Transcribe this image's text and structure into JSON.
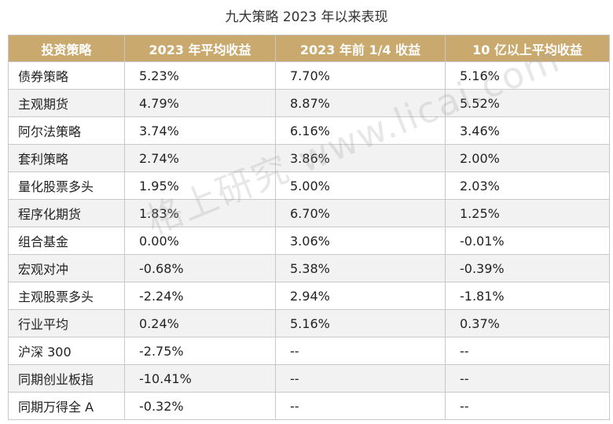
{
  "title": "九大策略 2023 年以来表现",
  "colors": {
    "header_bg": "#c9a96e",
    "header_text": "#ffffff",
    "stripe": "#f2f2f2"
  },
  "watermark": "格上研究 www.licai.com",
  "chart_data": {
    "type": "table",
    "title": "九大策略 2023 年以来表现",
    "columns": [
      "投资策略",
      "2023 年平均收益",
      "2023 年前 1/4 收益",
      "10 亿以上平均收益"
    ],
    "rows": [
      [
        "债券策略",
        "5.23%",
        "7.70%",
        "5.16%"
      ],
      [
        "主观期货",
        "4.79%",
        "8.87%",
        "5.52%"
      ],
      [
        "阿尔法策略",
        "3.74%",
        "6.16%",
        "3.46%"
      ],
      [
        "套利策略",
        "2.74%",
        "3.86%",
        "2.00%"
      ],
      [
        "量化股票多头",
        "1.95%",
        "5.00%",
        "2.03%"
      ],
      [
        "程序化期货",
        "1.83%",
        "6.70%",
        "1.25%"
      ],
      [
        "组合基金",
        "0.00%",
        "3.06%",
        "-0.01%"
      ],
      [
        "宏观对冲",
        "-0.68%",
        "5.38%",
        "-0.39%"
      ],
      [
        "主观股票多头",
        "-2.24%",
        "2.94%",
        "-1.81%"
      ],
      [
        "行业平均",
        "0.24%",
        "5.16%",
        "0.37%"
      ],
      [
        "沪深 300",
        "-2.75%",
        "--",
        "--"
      ],
      [
        "同期创业板指",
        "-10.41%",
        "--",
        "--"
      ],
      [
        "同期万得全 A",
        "-0.32%",
        "--",
        "--"
      ]
    ]
  }
}
